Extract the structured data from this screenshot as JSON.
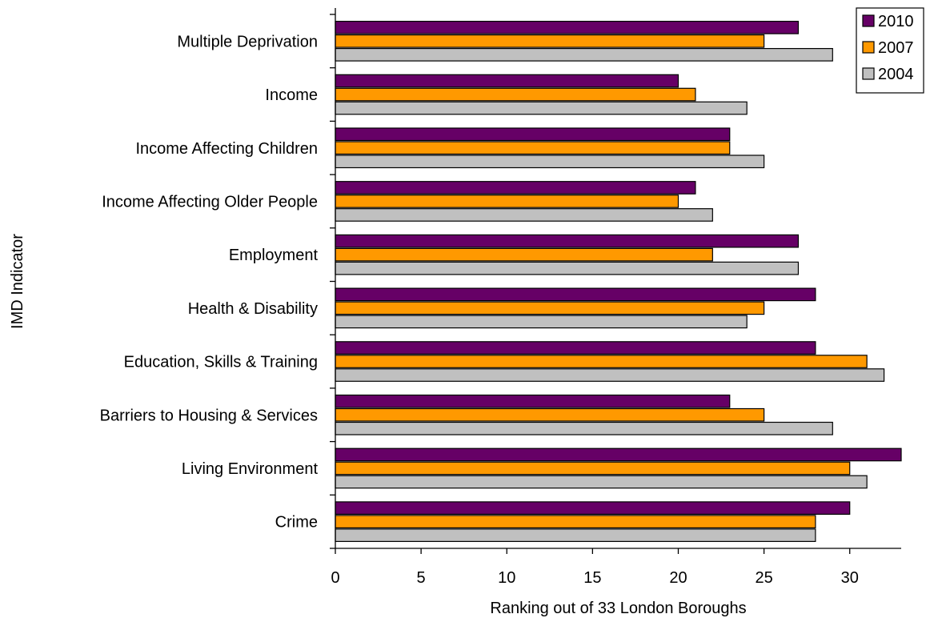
{
  "chart_data": {
    "type": "bar",
    "orientation": "horizontal",
    "title": "",
    "xlabel": "Ranking out of 33 London Boroughs",
    "ylabel": "IMD Indicator",
    "xlim": [
      0,
      33
    ],
    "xticks": [
      "0",
      "5",
      "10",
      "15",
      "20",
      "25",
      "30"
    ],
    "grid": false,
    "legend_position": "top-right",
    "categories": [
      "Multiple Deprivation",
      "Income",
      "Income Affecting Children",
      "Income Affecting Older People",
      "Employment",
      "Health & Disability",
      "Education, Skills & Training",
      "Barriers to Housing & Services",
      "Living Environment",
      "Crime"
    ],
    "series": [
      {
        "name": "2010",
        "color": "#660066",
        "values": [
          27,
          20,
          23,
          21,
          27,
          28,
          28,
          23,
          33,
          30
        ]
      },
      {
        "name": "2007",
        "color": "#ff9900",
        "values": [
          25,
          21,
          23,
          20,
          22,
          25,
          31,
          25,
          30,
          28
        ]
      },
      {
        "name": "2004",
        "color": "#c0c0c0",
        "values": [
          29,
          24,
          25,
          22,
          27,
          24,
          32,
          29,
          31,
          28
        ]
      }
    ]
  }
}
